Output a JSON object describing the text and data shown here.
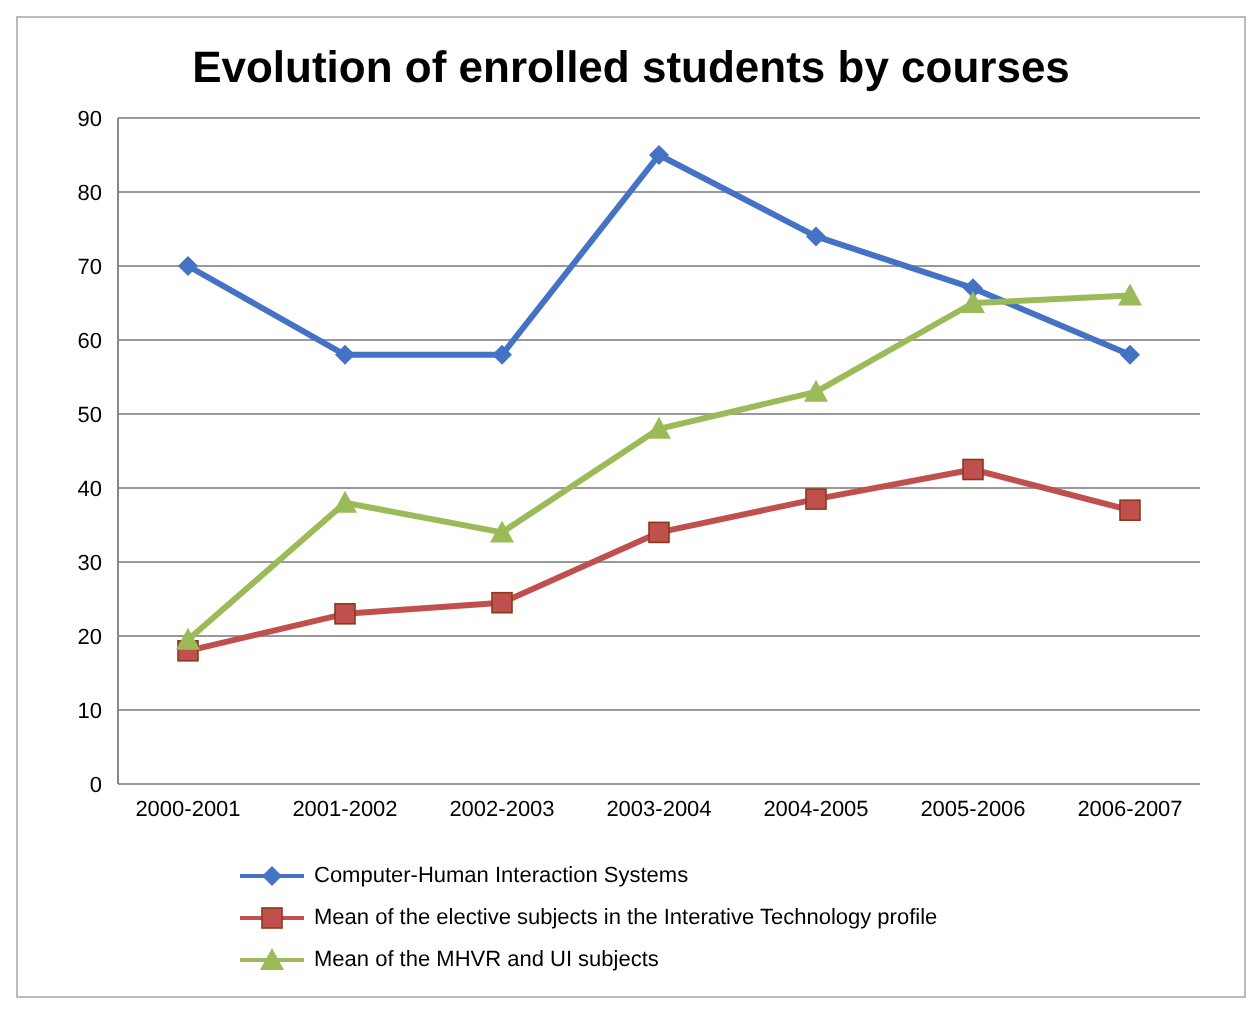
{
  "chart_data": {
    "type": "line",
    "title": "Evolution of enrolled students by courses",
    "categories": [
      "2000-2001",
      "2001-2002",
      "2002-2003",
      "2003-2004",
      "2004-2005",
      "2005-2006",
      "2006-2007"
    ],
    "series": [
      {
        "name": "Computer-Human Interaction Systems",
        "color": "#4472c4",
        "marker": "diamond",
        "values": [
          70,
          58,
          58,
          85,
          74,
          67,
          58
        ]
      },
      {
        "name": "Mean of the elective subjects in the Interative Technology profile",
        "color": "#c0504d",
        "marker": "square",
        "values": [
          18,
          23,
          24.5,
          34,
          38.5,
          42.5,
          37
        ]
      },
      {
        "name": "Mean of the MHVR and UI subjects",
        "color": "#9bbb59",
        "marker": "triangle",
        "values": [
          19.5,
          38,
          34,
          48,
          53,
          65,
          66
        ]
      }
    ],
    "ylim": [
      0,
      90
    ],
    "yticks": [
      0,
      10,
      20,
      30,
      40,
      50,
      60,
      70,
      80,
      90
    ],
    "grid": "y",
    "legend": "bottom",
    "line_style": "solid"
  }
}
